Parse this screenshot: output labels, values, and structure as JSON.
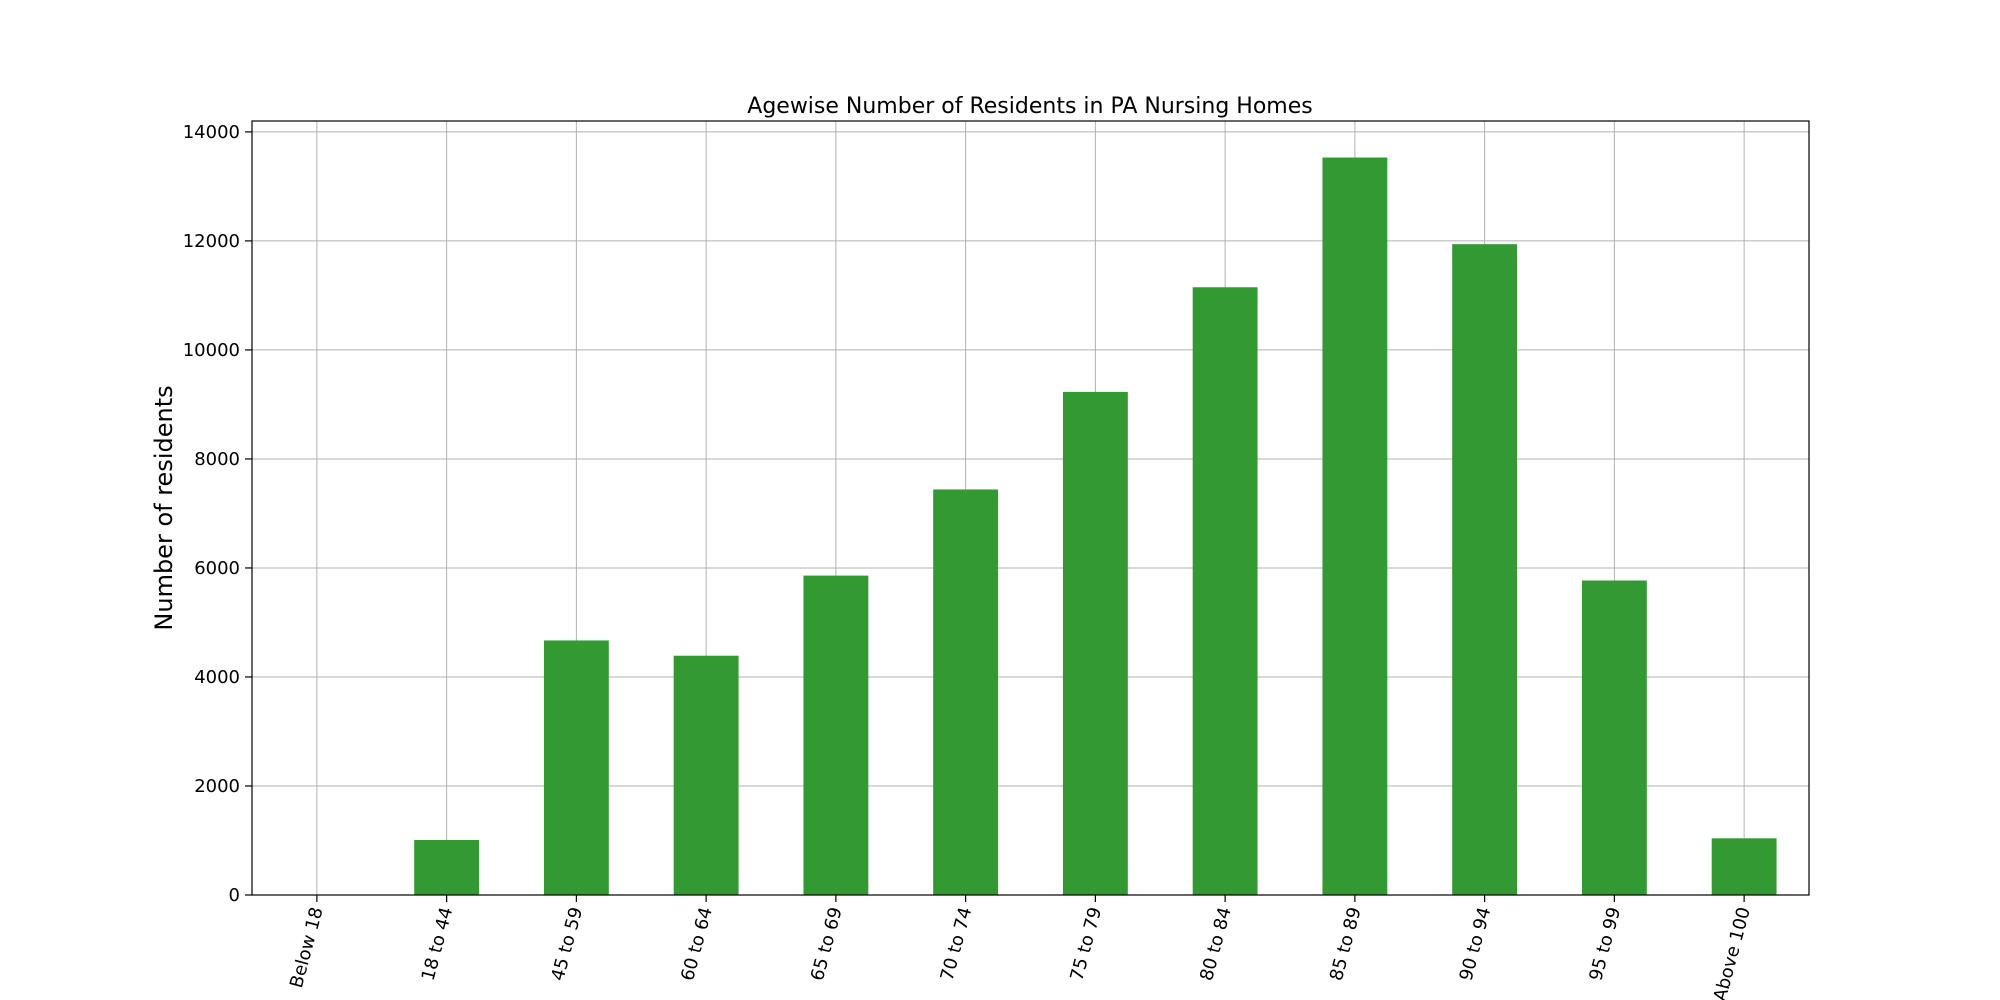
{
  "chart_data": {
    "type": "bar",
    "title": "Agewise Number of Residents in PA Nursing Homes",
    "xlabel": "",
    "ylabel": "Number of residents",
    "categories": [
      "Below 18",
      "18 to 44",
      "45 to 59",
      "60 to 64",
      "65 to 69",
      "70 to 74",
      "75 to 79",
      "80 to 84",
      "85 to 89",
      "90 to 94",
      "95 to 99",
      "Above 100"
    ],
    "values": [
      5,
      1010,
      4670,
      4390,
      5860,
      7440,
      9230,
      11150,
      13530,
      11940,
      5770,
      1040
    ],
    "ylim": [
      0,
      14200
    ],
    "yticks": [
      0,
      2000,
      4000,
      6000,
      8000,
      10000,
      12000,
      14000
    ],
    "grid": true,
    "bar_color": "#339933",
    "tick_label_rotation": "rotated about 75 degrees"
  }
}
